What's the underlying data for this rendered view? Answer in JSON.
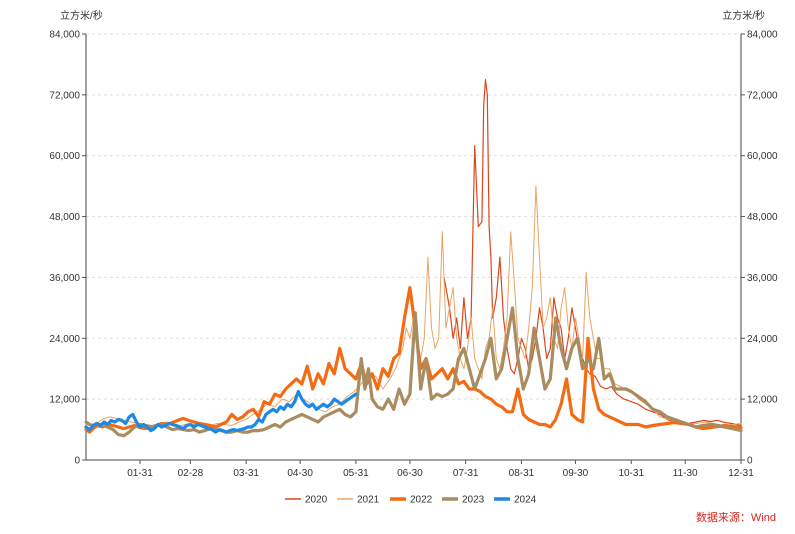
{
  "chart_data": {
    "type": "line",
    "unit_left": "立方米/秒",
    "unit_right": "立方米/秒",
    "ylim": [
      0,
      84000
    ],
    "y_ticks": [
      "0",
      "12,000",
      "24,000",
      "36,000",
      "48,000",
      "60,000",
      "72,000",
      "84,000"
    ],
    "y_tick_values": [
      0,
      12000,
      24000,
      36000,
      48000,
      60000,
      72000,
      84000
    ],
    "xlim": [
      1,
      365
    ],
    "x_tick_labels": [
      "01-31",
      "02-28",
      "03-31",
      "04-30",
      "05-31",
      "06-30",
      "07-31",
      "08-31",
      "09-30",
      "10-31",
      "11-30",
      "12-31"
    ],
    "x_tick_days": [
      31,
      59,
      90,
      120,
      151,
      181,
      212,
      243,
      273,
      304,
      334,
      365
    ],
    "grid": true,
    "legend_position": "bottom",
    "source": "数据来源：Wind",
    "series": [
      {
        "name": "2020",
        "color": "#d9471e",
        "width": 1.2,
        "x": [
          200,
          203,
          205,
          207,
          209,
          211,
          213,
          215,
          217,
          219,
          221,
          222,
          223,
          224,
          225,
          226,
          227,
          229,
          231,
          233,
          235,
          237,
          239,
          241,
          243,
          245,
          247,
          249,
          251,
          253,
          255,
          257,
          259,
          261,
          263,
          265,
          267,
          269,
          271,
          273,
          275,
          277,
          279,
          281,
          284,
          287,
          290,
          293,
          296,
          300,
          304,
          308,
          312,
          316,
          320,
          324,
          328,
          332,
          336,
          340,
          344,
          348,
          352,
          356,
          360,
          365
        ],
        "values": [
          36000,
          30000,
          24000,
          28000,
          22000,
          32000,
          24000,
          28000,
          62000,
          46000,
          47000,
          70000,
          75000,
          72000,
          46000,
          40000,
          28000,
          32000,
          40000,
          28000,
          22000,
          18000,
          17000,
          20000,
          24000,
          22000,
          18000,
          20000,
          24000,
          30000,
          26000,
          20000,
          22000,
          32000,
          28000,
          26000,
          20000,
          24000,
          30000,
          26000,
          22000,
          20000,
          18000,
          17000,
          16500,
          14500,
          14000,
          14500,
          13000,
          12000,
          11500,
          11000,
          10000,
          9500,
          9000,
          8000,
          7500,
          7000,
          7200,
          7500,
          7800,
          7600,
          7800,
          7400,
          7200,
          6800
        ]
      },
      {
        "name": "2021",
        "color": "#e8a562",
        "width": 1.0,
        "x": [
          1,
          4,
          7,
          10,
          14,
          18,
          22,
          26,
          30,
          34,
          38,
          42,
          46,
          50,
          54,
          58,
          62,
          66,
          70,
          74,
          78,
          82,
          86,
          90,
          94,
          98,
          102,
          106,
          110,
          114,
          118,
          122,
          126,
          130,
          134,
          138,
          142,
          146,
          150,
          154,
          158,
          162,
          166,
          170,
          173,
          175,
          177,
          179,
          181,
          183,
          185,
          187,
          189,
          191,
          193,
          195,
          197,
          199,
          201,
          203,
          205,
          207,
          209,
          211,
          213,
          215,
          217,
          219,
          221,
          223,
          225,
          227,
          229,
          231,
          233,
          235,
          237,
          239,
          241,
          243,
          245,
          247,
          249,
          251,
          253,
          255,
          257,
          259,
          261,
          263,
          265,
          267,
          269,
          271,
          273,
          275,
          277,
          279,
          281,
          283,
          285,
          287,
          289,
          292,
          295,
          298,
          301,
          304,
          308,
          312,
          316,
          320,
          325,
          330,
          335,
          340,
          345,
          350,
          355,
          360,
          365
        ],
        "values": [
          7000,
          6800,
          7200,
          8000,
          8500,
          8200,
          7800,
          7500,
          7200,
          7000,
          6800,
          7200,
          7500,
          7000,
          6800,
          7200,
          7000,
          6500,
          6800,
          7200,
          7000,
          6800,
          7500,
          8000,
          9000,
          10000,
          11000,
          10500,
          12000,
          11500,
          13000,
          12000,
          11000,
          10000,
          9500,
          10500,
          11000,
          12500,
          13500,
          15000,
          17000,
          16500,
          14000,
          16000,
          18000,
          20000,
          22000,
          26000,
          24000,
          28000,
          22000,
          20000,
          24000,
          40000,
          26000,
          22000,
          24000,
          45000,
          26000,
          30000,
          34000,
          24000,
          20000,
          18000,
          22000,
          28000,
          20000,
          18000,
          16000,
          22000,
          24000,
          30000,
          20000,
          18000,
          22000,
          28000,
          45000,
          35000,
          24000,
          22000,
          20000,
          26000,
          34000,
          54000,
          40000,
          26000,
          28000,
          32000,
          24000,
          22000,
          30000,
          34000,
          26000,
          22000,
          28000,
          24000,
          20000,
          37000,
          28000,
          24000,
          20000,
          20000,
          18000,
          18000,
          15000,
          14500,
          14000,
          13500,
          12000,
          11000,
          10000,
          8500,
          8000,
          7500,
          7000,
          7200,
          7500,
          7200,
          6800,
          7000,
          7200
        ]
      },
      {
        "name": "2022",
        "color": "#f36b12",
        "width": 3.2,
        "x": [
          1,
          3,
          5,
          7,
          10,
          13,
          16,
          19,
          22,
          25,
          28,
          31,
          34,
          37,
          40,
          43,
          46,
          49,
          52,
          55,
          58,
          61,
          64,
          67,
          70,
          73,
          76,
          79,
          82,
          85,
          88,
          91,
          94,
          97,
          100,
          103,
          106,
          109,
          112,
          115,
          118,
          121,
          124,
          127,
          130,
          133,
          136,
          139,
          142,
          145,
          148,
          151,
          154,
          157,
          160,
          163,
          166,
          169,
          172,
          175,
          178,
          181,
          184,
          187,
          190,
          193,
          196,
          199,
          202,
          205,
          208,
          211,
          214,
          217,
          220,
          223,
          226,
          229,
          232,
          235,
          238,
          241,
          244,
          247,
          250,
          253,
          256,
          259,
          262,
          265,
          268,
          271,
          274,
          277,
          280,
          283,
          286,
          289,
          292,
          295,
          298,
          301,
          304,
          308,
          312,
          316,
          320,
          324,
          328,
          332,
          336,
          340,
          344,
          348,
          352,
          356,
          360,
          365
        ],
        "values": [
          6000,
          5500,
          6200,
          6800,
          6500,
          7000,
          6800,
          6500,
          6200,
          6500,
          6800,
          6400,
          6200,
          6500,
          6800,
          7200,
          7000,
          7400,
          7800,
          8200,
          7800,
          7500,
          7200,
          7000,
          6800,
          6500,
          7000,
          7500,
          9000,
          8000,
          8500,
          9500,
          10000,
          8500,
          11500,
          11000,
          13000,
          12500,
          14000,
          15000,
          16000,
          15000,
          18500,
          14000,
          17000,
          15000,
          19000,
          17000,
          22000,
          18000,
          17000,
          16000,
          19000,
          15000,
          17000,
          14000,
          18000,
          16500,
          20000,
          21000,
          28000,
          34000,
          26000,
          18000,
          20000,
          16000,
          17000,
          18000,
          16000,
          18000,
          15000,
          15500,
          14000,
          14000,
          13500,
          12500,
          12000,
          11000,
          10500,
          9500,
          9500,
          14000,
          9000,
          8000,
          7500,
          7000,
          7000,
          6500,
          8000,
          11000,
          16000,
          9000,
          8000,
          7500,
          24000,
          14000,
          10000,
          9000,
          8500,
          8000,
          7500,
          7000,
          7000,
          7000,
          6500,
          6800,
          7000,
          7200,
          7400,
          7200,
          7000,
          6500,
          6200,
          6400,
          6600,
          6800,
          6600,
          6400
        ]
      },
      {
        "name": "2023",
        "color": "#a98c5f",
        "width": 3.2,
        "x": [
          1,
          3,
          5,
          7,
          10,
          13,
          16,
          19,
          22,
          25,
          28,
          31,
          34,
          37,
          40,
          43,
          46,
          49,
          52,
          55,
          58,
          61,
          64,
          67,
          70,
          73,
          76,
          79,
          82,
          85,
          88,
          91,
          94,
          97,
          100,
          103,
          106,
          109,
          112,
          115,
          118,
          121,
          124,
          127,
          130,
          133,
          136,
          139,
          142,
          145,
          148,
          151,
          154,
          156,
          158,
          160,
          163,
          166,
          169,
          172,
          175,
          178,
          181,
          184,
          187,
          190,
          193,
          196,
          199,
          202,
          205,
          208,
          211,
          214,
          217,
          220,
          223,
          226,
          229,
          232,
          235,
          238,
          241,
          244,
          247,
          250,
          253,
          256,
          259,
          262,
          265,
          268,
          271,
          274,
          277,
          280,
          283,
          286,
          289,
          292,
          295,
          298,
          301,
          304,
          308,
          312,
          316,
          320,
          324,
          328,
          332,
          336,
          340,
          344,
          348,
          352,
          356,
          360,
          365
        ],
        "values": [
          7500,
          7000,
          6800,
          7200,
          6800,
          6500,
          6000,
          5000,
          4800,
          5500,
          6500,
          7000,
          6800,
          6500,
          6800,
          7000,
          6500,
          6000,
          6200,
          6000,
          5800,
          6000,
          5500,
          5800,
          6200,
          6000,
          5800,
          5500,
          5500,
          5800,
          5500,
          5500,
          5800,
          5800,
          6000,
          6500,
          7000,
          6500,
          7500,
          8000,
          8500,
          9000,
          8500,
          8000,
          7500,
          8500,
          9000,
          9500,
          10000,
          9000,
          8500,
          9500,
          20000,
          14000,
          18000,
          12000,
          10500,
          10000,
          12000,
          10000,
          14000,
          11000,
          13000,
          29000,
          14000,
          20000,
          12000,
          13000,
          12500,
          13000,
          14000,
          20000,
          22000,
          18000,
          14000,
          17000,
          20000,
          24000,
          16000,
          18000,
          24000,
          30000,
          20000,
          14000,
          17000,
          26000,
          20000,
          14000,
          16000,
          28000,
          22000,
          18000,
          22000,
          24000,
          18000,
          20000,
          18000,
          24000,
          16000,
          17000,
          14000,
          14000,
          14000,
          13500,
          12500,
          11500,
          10000,
          9500,
          8500,
          8000,
          7500,
          7000,
          6500,
          6800,
          7000,
          6800,
          6500,
          6200,
          5800
        ]
      },
      {
        "name": "2024",
        "color": "#1e88e5",
        "width": 3.2,
        "x": [
          1,
          3,
          5,
          7,
          9,
          11,
          13,
          15,
          17,
          19,
          21,
          23,
          25,
          27,
          29,
          31,
          33,
          35,
          37,
          39,
          41,
          43,
          45,
          47,
          49,
          51,
          53,
          55,
          57,
          59,
          61,
          63,
          65,
          67,
          69,
          71,
          73,
          75,
          77,
          79,
          81,
          83,
          85,
          87,
          89,
          91,
          93,
          95,
          97,
          99,
          101,
          103,
          105,
          107,
          109,
          111,
          113,
          115,
          117,
          119,
          121,
          123,
          125,
          127,
          129,
          131,
          133,
          135,
          137,
          139,
          141,
          143,
          145,
          147,
          149,
          151
        ],
        "values": [
          6500,
          6000,
          6800,
          7200,
          6800,
          7500,
          7000,
          7800,
          7500,
          8000,
          7800,
          7200,
          8500,
          9000,
          7500,
          6500,
          7000,
          6500,
          5800,
          6200,
          7000,
          6500,
          6800,
          7200,
          7000,
          6800,
          6500,
          6200,
          6800,
          7000,
          6500,
          7000,
          6800,
          6500,
          6200,
          6000,
          5500,
          6000,
          5800,
          5500,
          5800,
          6000,
          5800,
          6000,
          6200,
          6500,
          6500,
          7000,
          8000,
          7500,
          9000,
          9500,
          10000,
          9500,
          10500,
          10000,
          11000,
          10500,
          11500,
          13500,
          12000,
          11000,
          10500,
          11000,
          10000,
          10500,
          11000,
          10500,
          11000,
          12000,
          11500,
          11000,
          11500,
          12000,
          12500,
          13000
        ]
      }
    ]
  }
}
